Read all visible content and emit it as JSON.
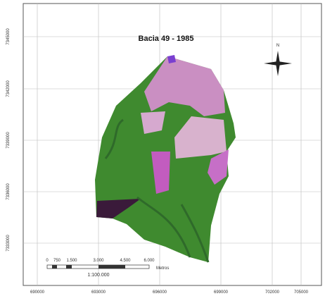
{
  "map": {
    "title": "Bacia 49 - 1985",
    "x_labels": [
      "690000",
      "693000",
      "696000",
      "699000",
      "702000",
      "705000"
    ],
    "y_labels": [
      "7345000",
      "7342000",
      "7339000",
      "7336000",
      "7333000"
    ],
    "north": "N",
    "scale_labels": [
      "0",
      "750",
      "1.500",
      "3.000",
      "4.500",
      "6.000"
    ],
    "scale_unit": "Metros",
    "scale_ratio": "1:100.000"
  }
}
